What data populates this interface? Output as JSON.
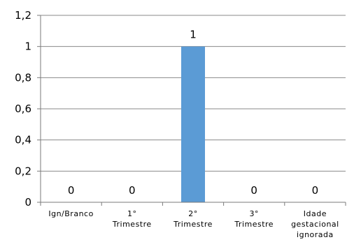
{
  "chart_data": {
    "type": "bar",
    "categories": [
      [
        "Ign/Branco"
      ],
      [
        "1°",
        "Trimestre"
      ],
      [
        "2°",
        "Trimestre"
      ],
      [
        "3°",
        "Trimestre"
      ],
      [
        "Idade",
        "gestacional",
        "ignorada"
      ]
    ],
    "values": [
      0,
      0,
      1,
      0,
      0
    ],
    "data_labels": [
      "0",
      "0",
      "1",
      "0",
      "0"
    ],
    "y_ticks": [
      "0",
      "0,2",
      "0,4",
      "0,6",
      "0,8",
      "1",
      "1,2"
    ],
    "ylim": [
      0,
      1.2
    ],
    "grid": true,
    "legend": "none",
    "colors": {
      "bar": "#5b9bd5",
      "grid": "#8a8a8a",
      "axis": "#7a7a7a",
      "text": "#000000"
    }
  }
}
